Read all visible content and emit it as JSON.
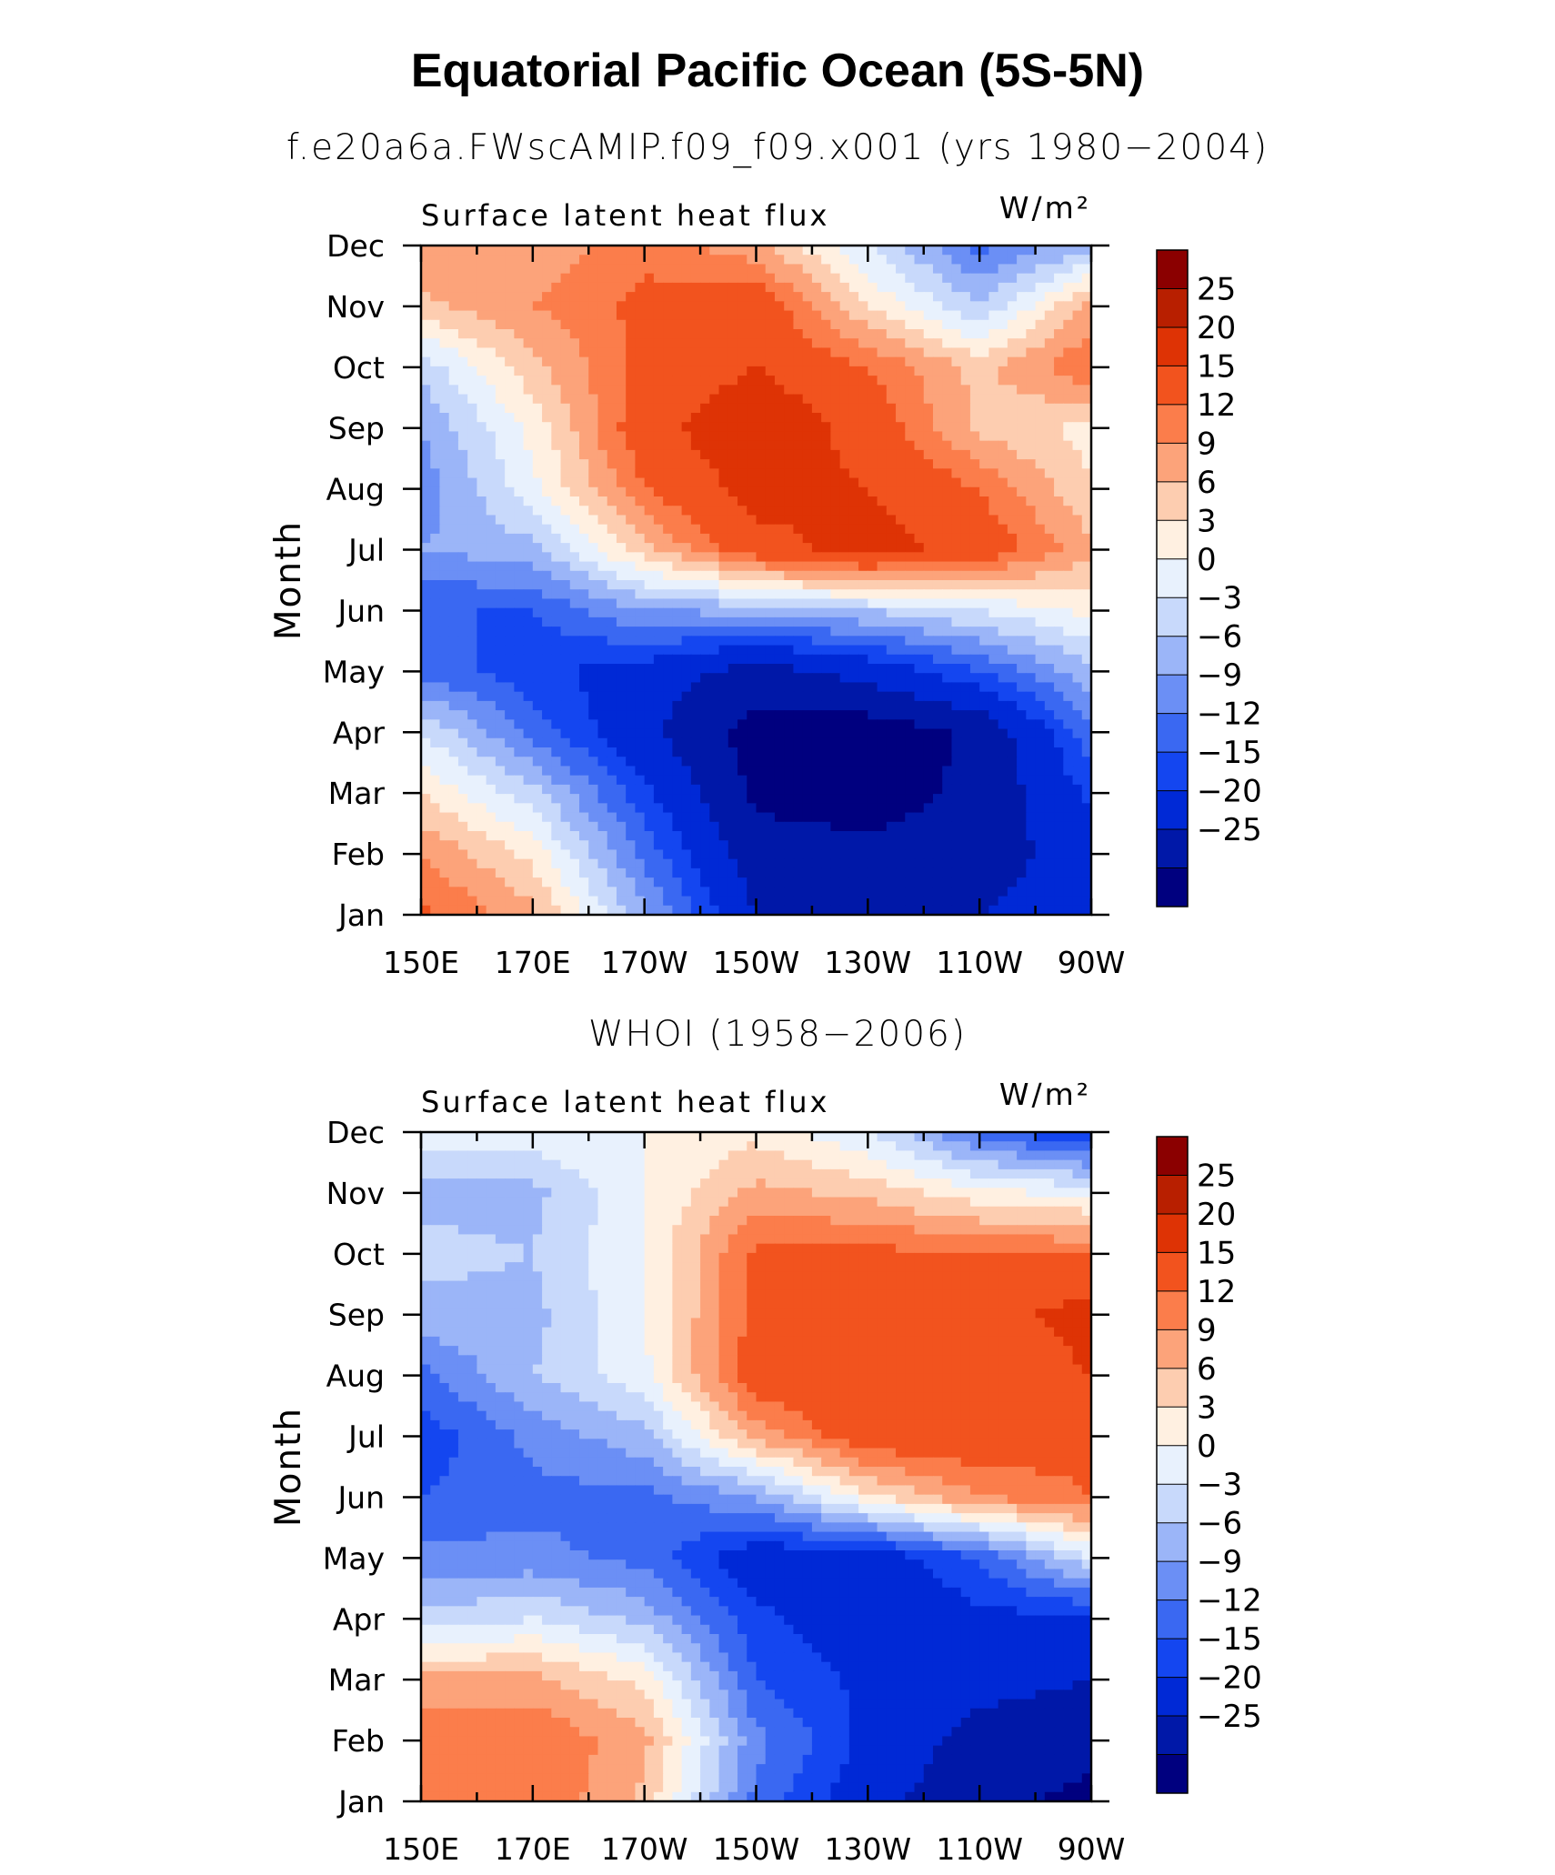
{
  "title": "Equatorial Pacific Ocean (5S-5N)",
  "subtitles": [
    "f.e20a6a.FWscAMIP.f09_f09.x001 (yrs 1980−2004)",
    "WHOI (1958−2006)"
  ],
  "chart_data": [
    {
      "type": "heatmap",
      "panel_title": "Surface latent heat flux",
      "units": "W/m²",
      "ylabel": "Month",
      "x_tick_labels": [
        "150E",
        "170E",
        "170W",
        "150W",
        "130W",
        "110W",
        "90W"
      ],
      "x_range_deg_east": [
        150,
        270
      ],
      "y_tick_labels": [
        "Jan",
        "Feb",
        "Mar",
        "Apr",
        "May",
        "Jun",
        "Jul",
        "Aug",
        "Sep",
        "Oct",
        "Nov",
        "Dec"
      ],
      "colorbar_levels": [
        -25,
        -20,
        -15,
        -12,
        -9,
        -6,
        -3,
        0,
        3,
        6,
        9,
        12,
        15,
        20,
        25
      ],
      "colorbar_labels": [
        "25",
        "20",
        "15",
        "12",
        "9",
        "6",
        "3",
        "0",
        "−3",
        "−6",
        "−9",
        "−12",
        "−15",
        "−20",
        "−25"
      ],
      "colors": [
        "#00007f",
        "#0018a8",
        "#0029d6",
        "#1446f0",
        "#3a68f2",
        "#6b8ff5",
        "#9bb5f8",
        "#c8d9fb",
        "#e8f1fd",
        "#fff0e1",
        "#fdcdb0",
        "#fca37a",
        "#fb7d4b",
        "#f2531e",
        "#de3305",
        "#b81f00",
        "#8b0000"
      ],
      "lon_grid": [
        150,
        170,
        190,
        210,
        230,
        250,
        270
      ],
      "month_grid": [
        "Jan",
        "Feb",
        "Mar",
        "Apr",
        "May",
        "Jun",
        "Jul",
        "Aug",
        "Sep",
        "Oct",
        "Nov",
        "Dec"
      ],
      "values": [
        [
          16,
          10,
          -5,
          -20,
          -22,
          -20,
          -18
        ],
        [
          12,
          5,
          -10,
          -23,
          -24,
          -22,
          -18
        ],
        [
          6,
          -2,
          -14,
          -26,
          -27,
          -24,
          -14
        ],
        [
          0,
          -10,
          -19,
          -27,
          -28,
          -24,
          -10
        ],
        [
          -10,
          -14,
          -17,
          -22,
          -18,
          -12,
          -4
        ],
        [
          -12,
          -12,
          -6,
          -5,
          -3,
          0,
          4
        ],
        [
          -6,
          -4,
          8,
          18,
          22,
          18,
          10
        ],
        [
          -8,
          2,
          15,
          22,
          20,
          15,
          6
        ],
        [
          -6,
          4,
          18,
          24,
          18,
          8,
          5
        ],
        [
          -2,
          8,
          16,
          20,
          15,
          8,
          15
        ],
        [
          8,
          12,
          16,
          18,
          6,
          -3,
          10
        ],
        [
          12,
          10,
          14,
          10,
          0,
          -10,
          -4
        ]
      ]
    },
    {
      "type": "heatmap",
      "panel_title": "Surface latent heat flux",
      "units": "W/m²",
      "ylabel": "Month",
      "x_tick_labels": [
        "150E",
        "170E",
        "170W",
        "150W",
        "130W",
        "110W",
        "90W"
      ],
      "x_range_deg_east": [
        150,
        270
      ],
      "y_tick_labels": [
        "Jan",
        "Feb",
        "Mar",
        "Apr",
        "May",
        "Jun",
        "Jul",
        "Aug",
        "Sep",
        "Oct",
        "Nov",
        "Dec"
      ],
      "colorbar_levels": [
        -25,
        -20,
        -15,
        -12,
        -9,
        -6,
        -3,
        0,
        3,
        6,
        9,
        12,
        15,
        20,
        25
      ],
      "colorbar_labels": [
        "25",
        "20",
        "15",
        "12",
        "9",
        "6",
        "3",
        "0",
        "−3",
        "−6",
        "−9",
        "−12",
        "−15",
        "−20",
        "−25"
      ],
      "colors": [
        "#00007f",
        "#0018a8",
        "#0029d6",
        "#1446f0",
        "#3a68f2",
        "#6b8ff5",
        "#9bb5f8",
        "#c8d9fb",
        "#e8f1fd",
        "#fff0e1",
        "#fdcdb0",
        "#fca37a",
        "#fb7d4b",
        "#f2531e",
        "#de3305",
        "#b81f00",
        "#8b0000"
      ],
      "lon_grid": [
        150,
        170,
        190,
        210,
        230,
        250,
        270
      ],
      "month_grid": [
        "Jan",
        "Feb",
        "Mar",
        "Apr",
        "May",
        "Jun",
        "Jul",
        "Aug",
        "Sep",
        "Oct",
        "Nov",
        "Dec"
      ],
      "values": [
        [
          14,
          15,
          8,
          -10,
          -18,
          -24,
          -26
        ],
        [
          15,
          15,
          10,
          -8,
          -16,
          -22,
          -24
        ],
        [
          10,
          10,
          5,
          -12,
          -16,
          -18,
          -20
        ],
        [
          -2,
          0,
          -4,
          -14,
          -18,
          -16,
          -16
        ],
        [
          -8,
          -8,
          -10,
          -18,
          -18,
          -12,
          0
        ],
        [
          -12,
          -10,
          -10,
          -6,
          5,
          12,
          15
        ],
        [
          -14,
          -8,
          -4,
          10,
          18,
          18,
          16
        ],
        [
          -10,
          -3,
          2,
          18,
          20,
          16,
          20
        ],
        [
          -4,
          -4,
          3,
          16,
          18,
          18,
          22
        ],
        [
          -2,
          -3,
          3,
          16,
          16,
          15,
          15
        ],
        [
          -4,
          -4,
          3,
          10,
          8,
          4,
          2
        ],
        [
          2,
          2,
          3,
          5,
          0,
          -10,
          -16
        ]
      ]
    }
  ]
}
